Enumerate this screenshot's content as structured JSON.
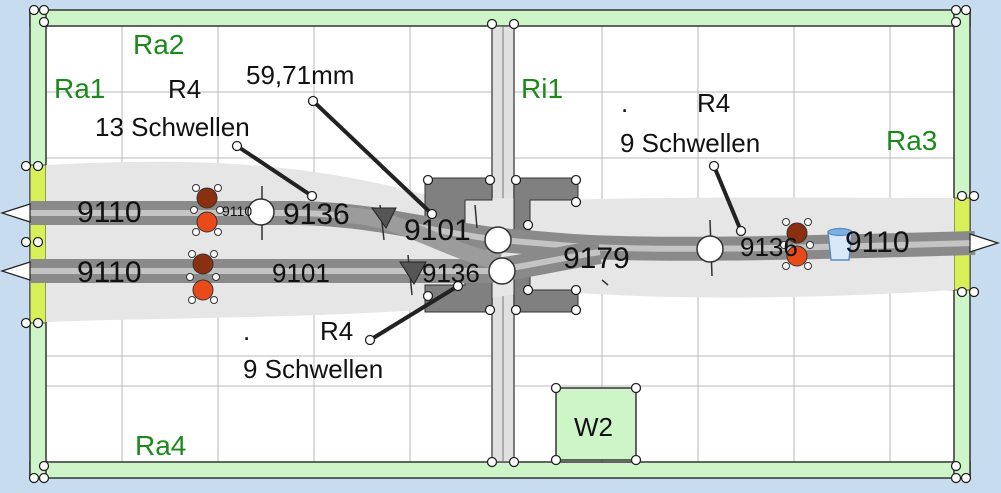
{
  "frame_labels": {
    "ra1": "Ra1",
    "ra2": "Ra2",
    "ra3": "Ra3",
    "ra4": "Ra4",
    "ri1": "Ri1",
    "w2": "W2"
  },
  "annotations": {
    "measure": "59,71mm",
    "radius_upper_left": "R4",
    "ties_upper_left": "13 Schwellen",
    "radius_right": "R4",
    "ties_right": "9 Schwellen",
    "dot_right": ".",
    "radius_lower": "R4",
    "ties_lower": "9 Schwellen",
    "dot_lower": "."
  },
  "track_labels": {
    "top_left": "9110",
    "bottom_left": "9110",
    "top_mid": "9136",
    "bottom_mid": "9101",
    "switch_upper": "9101",
    "switch_lower": "9136",
    "crossing": "9179",
    "right_piece": "9136",
    "right_end": "9110",
    "tiny": "9110"
  },
  "colors": {
    "background": "#c8dcf0",
    "board": "#ffffff",
    "frame": "#cdf5c8",
    "track": "#9a9a9a",
    "green_label": "#1a8a1a",
    "signal_red": "#e84a1a",
    "signal_brown": "#8a3010"
  }
}
